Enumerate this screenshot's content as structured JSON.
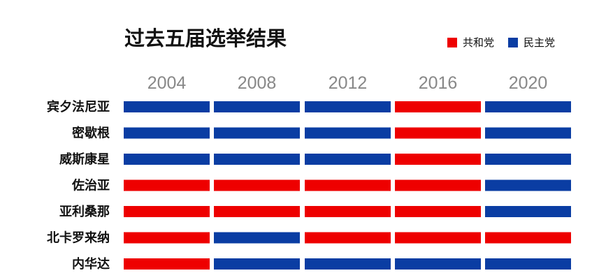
{
  "colors": {
    "R": "#ee0000",
    "D": "#0a3da3"
  },
  "chart_data": {
    "type": "heatmap",
    "title": "过去五届选举结果",
    "columns": [
      "2004",
      "2008",
      "2012",
      "2016",
      "2020"
    ],
    "rows": [
      "宾夕法尼亚",
      "密歇根",
      "威斯康星",
      "佐治亚",
      "亚利桑那",
      "北卡罗来纳",
      "内华达"
    ],
    "values": [
      [
        "D",
        "D",
        "D",
        "R",
        "D"
      ],
      [
        "D",
        "D",
        "D",
        "R",
        "D"
      ],
      [
        "D",
        "D",
        "D",
        "R",
        "D"
      ],
      [
        "R",
        "R",
        "R",
        "R",
        "D"
      ],
      [
        "R",
        "R",
        "R",
        "R",
        "D"
      ],
      [
        "R",
        "D",
        "R",
        "R",
        "R"
      ],
      [
        "R",
        "D",
        "D",
        "D",
        "D"
      ]
    ],
    "legend": [
      {
        "key": "R",
        "label": "共和党"
      },
      {
        "key": "D",
        "label": "民主党"
      }
    ],
    "legend_position": "top-right"
  }
}
